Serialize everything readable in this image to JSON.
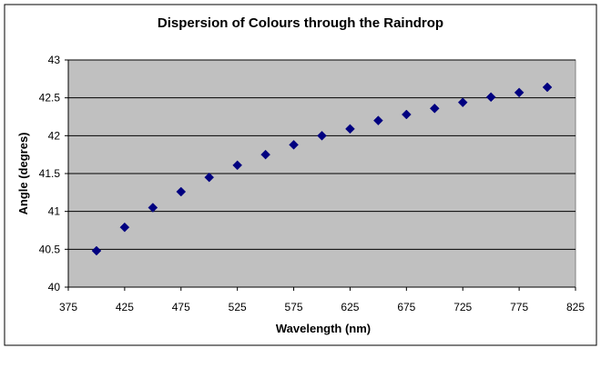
{
  "chart_data": {
    "type": "scatter",
    "title": "Dispersion of Colours through the Raindrop",
    "xlabel": "Wavelength (nm)",
    "ylabel": "Angle (degres)",
    "xlim": [
      375,
      825
    ],
    "ylim": [
      40,
      43
    ],
    "x_ticks": [
      375,
      425,
      475,
      525,
      575,
      625,
      675,
      725,
      775,
      825
    ],
    "y_ticks": [
      40,
      40.5,
      41,
      41.5,
      42,
      42.5,
      43
    ],
    "grid": "horizontal",
    "legend": "none",
    "series": [
      {
        "marker": "diamond",
        "x": [
          400,
          425,
          450,
          475,
          500,
          525,
          550,
          575,
          600,
          625,
          650,
          675,
          700,
          725,
          750,
          775,
          800
        ],
        "y": [
          40.48,
          40.79,
          41.05,
          41.26,
          41.45,
          41.61,
          41.75,
          41.88,
          42.0,
          42.09,
          42.2,
          42.28,
          42.36,
          42.44,
          42.51,
          42.57,
          42.64
        ]
      }
    ],
    "colors": {
      "plot_background": "#c0c0c0",
      "marker": "#000080",
      "gridline": "#000000",
      "frame": "#000000"
    }
  }
}
